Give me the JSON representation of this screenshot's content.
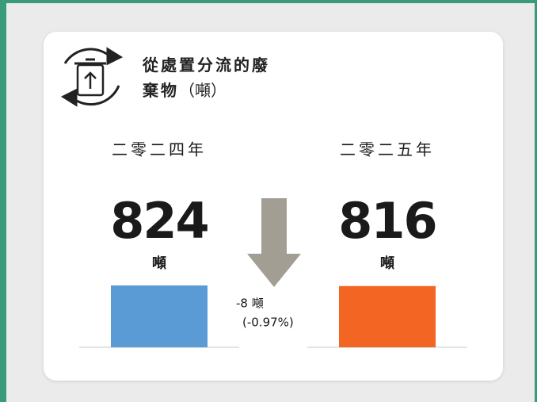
{
  "chart_data": {
    "type": "bar",
    "title": "從處置分流的廢棄物",
    "title_unit": "（噸）",
    "categories": [
      "二零二四年",
      "二零二五年"
    ],
    "values": [
      824,
      816
    ],
    "value_unit": "噸",
    "colors": [
      "#5b9bd5",
      "#f26522"
    ],
    "annotations": [
      "-8 噸",
      "(-0.97%)"
    ]
  }
}
